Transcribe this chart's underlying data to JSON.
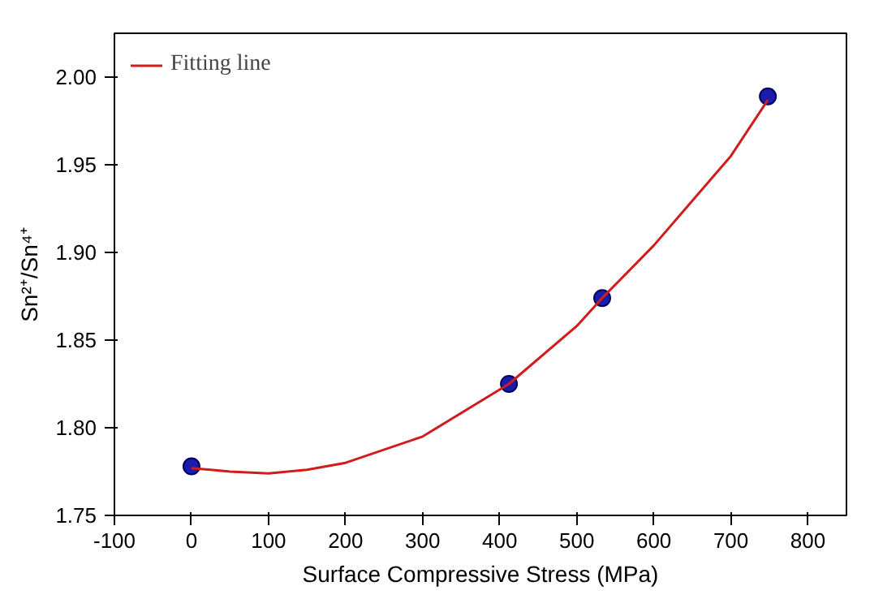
{
  "chart_data": {
    "type": "scatter",
    "xlabel": "Surface Compressive Stress (MPa)",
    "ylabel": "Sn²⁺/Sn⁴⁺",
    "xlim": [
      -100,
      850
    ],
    "ylim": [
      1.75,
      2.025
    ],
    "xticks": [
      -100,
      0,
      100,
      200,
      300,
      400,
      500,
      600,
      700,
      800
    ],
    "yticks": [
      {
        "value": 1.75,
        "label": "1.75"
      },
      {
        "value": 1.8,
        "label": "1.80"
      },
      {
        "value": 1.85,
        "label": "1.85"
      },
      {
        "value": 1.9,
        "label": "1.90"
      },
      {
        "value": 1.95,
        "label": "1.95"
      },
      {
        "value": 2.0,
        "label": "2.00"
      }
    ],
    "grid": false,
    "legend": "top left",
    "series": [
      {
        "color": "#1c1caa",
        "marker": "circle",
        "x": [
          0,
          412,
          533,
          748
        ],
        "values": [
          1.778,
          1.825,
          1.874,
          1.989
        ]
      },
      {
        "type": "line",
        "name": "Fitting line",
        "color": "#d01c1c",
        "line_style": "solid",
        "x": [
          0,
          50,
          100,
          150,
          200,
          300,
          412,
          500,
          533,
          600,
          700,
          748
        ],
        "values": [
          1.777,
          1.775,
          1.774,
          1.776,
          1.78,
          1.795,
          1.825,
          1.858,
          1.874,
          1.904,
          1.955,
          1.987
        ]
      }
    ]
  }
}
